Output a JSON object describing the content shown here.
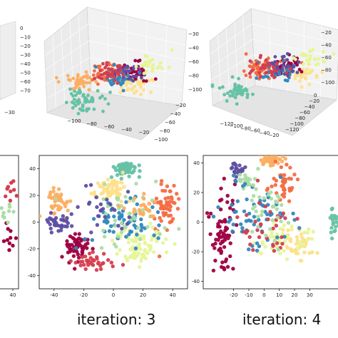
{
  "palette": [
    "#9e0142",
    "#d53e4f",
    "#f46d43",
    "#fdae61",
    "#fee08b",
    "#e6f598",
    "#abdda4",
    "#66c2a5",
    "#3288bd",
    "#5e4fa2"
  ],
  "captions": {
    "iteration3": "iteration: 3",
    "iteration4": "iteration: 4"
  },
  "chart_data": [
    {
      "type": "scatter",
      "subtype": "3d-partial",
      "title": "",
      "z_ticks": [
        "0",
        "−10",
        "−20",
        "−30",
        "−40",
        "−50",
        "−60",
        "−70"
      ],
      "x_ticks": [
        "−30"
      ],
      "note": "panel cut off at left edge"
    },
    {
      "type": "scatter",
      "subtype": "3d",
      "title": "",
      "x_ticks": [
        "−100",
        "−80",
        "−60",
        "−40",
        "−20"
      ],
      "y_ticks": [
        "−100",
        "−80",
        "−60",
        "−40",
        "−20"
      ],
      "z_ticks": [
        "−30",
        "−40",
        "−60",
        "−80",
        "−100"
      ],
      "clusters": [
        {
          "color": 2,
          "x": -70,
          "y": -50,
          "z": -50,
          "n": 60
        },
        {
          "color": 3,
          "x": -90,
          "y": -60,
          "z": -60,
          "n": 40
        },
        {
          "color": 7,
          "x": -80,
          "y": -80,
          "z": -90,
          "n": 55
        },
        {
          "color": 4,
          "x": -50,
          "y": -40,
          "z": -70,
          "n": 45
        },
        {
          "color": 0,
          "x": -45,
          "y": -50,
          "z": -55,
          "n": 35
        },
        {
          "color": 8,
          "x": -60,
          "y": -55,
          "z": -58,
          "n": 40
        },
        {
          "color": 9,
          "x": -55,
          "y": -45,
          "z": -50,
          "n": 30
        },
        {
          "color": 5,
          "x": -40,
          "y": -30,
          "z": -45,
          "n": 30
        },
        {
          "color": 1,
          "x": -65,
          "y": -60,
          "z": -48,
          "n": 30
        }
      ]
    },
    {
      "type": "scatter",
      "subtype": "3d",
      "title": "",
      "x_ticks": [
        "−120",
        "−100",
        "−80",
        "−60",
        "−40",
        "−20"
      ],
      "y_ticks": [
        "−120",
        "−100",
        "−80",
        "−60",
        "−40",
        "−20",
        "0"
      ],
      "z_ticks": [
        "−20",
        "−40",
        "−60",
        "−80",
        "−100"
      ],
      "clusters": [
        {
          "color": 2,
          "x": -80,
          "y": -60,
          "z": -50,
          "n": 60
        },
        {
          "color": 7,
          "x": -100,
          "y": -90,
          "z": -85,
          "n": 50
        },
        {
          "color": 4,
          "x": -50,
          "y": -40,
          "z": -70,
          "n": 40
        },
        {
          "color": 0,
          "x": -60,
          "y": -55,
          "z": -55,
          "n": 40
        },
        {
          "color": 8,
          "x": -70,
          "y": -60,
          "z": -60,
          "n": 35
        },
        {
          "color": 9,
          "x": -65,
          "y": -50,
          "z": -52,
          "n": 30
        },
        {
          "color": 5,
          "x": -40,
          "y": -30,
          "z": -45,
          "n": 25
        },
        {
          "color": 1,
          "x": -75,
          "y": -65,
          "z": -50,
          "n": 30
        }
      ]
    },
    {
      "type": "scatter",
      "subtype": "2d-partial",
      "title": "",
      "x_ticks": [
        "40"
      ],
      "note": "panel cut off at left edge",
      "clusters": [
        {
          "color": 1,
          "x": 38,
          "y": 20,
          "sx": 3,
          "sy": 4,
          "n": 12
        },
        {
          "color": 0,
          "x": 38,
          "y": -10,
          "sx": 3,
          "sy": 6,
          "n": 14
        },
        {
          "color": 6,
          "x": 36,
          "y": 5,
          "sx": 3,
          "sy": 4,
          "n": 10
        }
      ]
    },
    {
      "type": "scatter",
      "subtype": "2d",
      "title": "",
      "xlim": [
        -50,
        50
      ],
      "ylim": [
        -50,
        50
      ],
      "x_ticks": [
        -40,
        -20,
        0,
        20,
        40
      ],
      "y_ticks": [
        -40,
        -20,
        0,
        20,
        40
      ],
      "clusters": [
        {
          "color": 7,
          "x": 8,
          "y": 40,
          "sx": 4,
          "sy": 3,
          "n": 60
        },
        {
          "color": 4,
          "x": -2,
          "y": 24,
          "sx": 5,
          "sy": 4,
          "n": 60
        },
        {
          "color": 3,
          "x": -38,
          "y": 15,
          "sx": 4,
          "sy": 6,
          "n": 45
        },
        {
          "color": 9,
          "x": -37,
          "y": 0,
          "sx": 4,
          "sy": 3,
          "n": 35
        },
        {
          "color": 2,
          "x": 36,
          "y": 12,
          "sx": 4,
          "sy": 8,
          "n": 55
        },
        {
          "color": 0,
          "x": -25,
          "y": -18,
          "sx": 5,
          "sy": 5,
          "n": 60
        },
        {
          "color": 5,
          "x": 18,
          "y": -18,
          "sx": 9,
          "sy": 7,
          "n": 80
        },
        {
          "color": 8,
          "x": 6,
          "y": 0,
          "sx": 12,
          "sy": 10,
          "n": 60
        },
        {
          "color": 1,
          "x": -10,
          "y": -30,
          "sx": 10,
          "sy": 4,
          "n": 35
        },
        {
          "color": 6,
          "x": 10,
          "y": 5,
          "sx": 14,
          "sy": 12,
          "n": 45
        },
        {
          "color": 3,
          "x": 20,
          "y": 12,
          "sx": 5,
          "sy": 4,
          "n": 25
        },
        {
          "color": 9,
          "x": -5,
          "y": 10,
          "sx": 10,
          "sy": 10,
          "n": 25
        }
      ]
    },
    {
      "type": "scatter",
      "subtype": "2d",
      "title": "",
      "xlim": [
        -40,
        50
      ],
      "ylim": [
        -45,
        45
      ],
      "x_ticks": [
        -20,
        -10,
        0,
        10,
        20,
        30
      ],
      "y_ticks": [
        -40,
        -20,
        0,
        20,
        40
      ],
      "clusters": [
        {
          "color": 3,
          "x": 5,
          "y": 42,
          "sx": 4,
          "sy": 2,
          "n": 45
        },
        {
          "color": 9,
          "x": -17,
          "y": 35,
          "sx": 2,
          "sy": 3,
          "n": 25
        },
        {
          "color": 6,
          "x": -12,
          "y": 28,
          "sx": 3,
          "sy": 3,
          "n": 20
        },
        {
          "color": 2,
          "x": 13,
          "y": 25,
          "sx": 4,
          "sy": 6,
          "n": 40
        },
        {
          "color": 0,
          "x": -27,
          "y": -5,
          "sx": 4,
          "sy": 15,
          "n": 70
        },
        {
          "color": 4,
          "x": 22,
          "y": -16,
          "sx": 5,
          "sy": 5,
          "n": 40
        },
        {
          "color": 5,
          "x": 10,
          "y": -12,
          "sx": 10,
          "sy": 5,
          "n": 45
        },
        {
          "color": 8,
          "x": -5,
          "y": 5,
          "sx": 12,
          "sy": 12,
          "n": 60
        },
        {
          "color": 7,
          "x": 46,
          "y": 0,
          "sx": 1.5,
          "sy": 6,
          "n": 20
        },
        {
          "color": 1,
          "x": 0,
          "y": -5,
          "sx": 10,
          "sy": 10,
          "n": 35
        },
        {
          "color": 6,
          "x": 0,
          "y": 5,
          "sx": 10,
          "sy": 12,
          "n": 35
        }
      ]
    }
  ]
}
